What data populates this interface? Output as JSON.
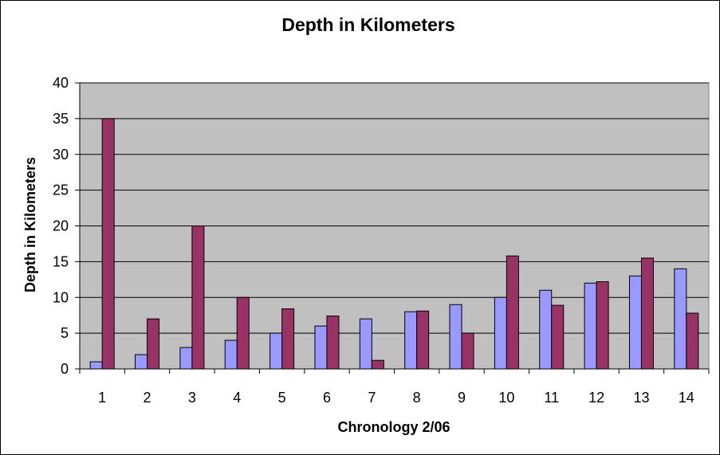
{
  "chart_data": {
    "type": "bar",
    "title": "Depth in Kilometers",
    "xlabel": "Chronology 2/06",
    "ylabel": "Depth in Kilometers",
    "categories": [
      "1",
      "2",
      "3",
      "4",
      "5",
      "6",
      "7",
      "8",
      "9",
      "10",
      "11",
      "12",
      "13",
      "14"
    ],
    "series": [
      {
        "values": [
          1,
          2,
          3,
          4,
          5,
          6,
          7,
          8,
          9,
          10,
          11,
          12,
          13,
          14
        ],
        "color": "#9999ff"
      },
      {
        "values": [
          35,
          7,
          20,
          10,
          8.4,
          7.4,
          1.2,
          8.1,
          5,
          15.8,
          8.9,
          12.2,
          15.5,
          7.8
        ],
        "color": "#993366"
      }
    ],
    "ylim": [
      0,
      40
    ],
    "yticks": [
      0,
      5,
      10,
      15,
      20,
      25,
      30,
      35,
      40
    ],
    "grid": true,
    "plot_background": "#c0c0c0",
    "legend": "none"
  }
}
